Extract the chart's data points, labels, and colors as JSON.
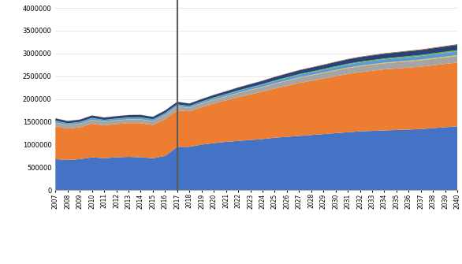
{
  "years": [
    2007,
    2008,
    2009,
    2010,
    2011,
    2012,
    2013,
    2014,
    2015,
    2016,
    2017,
    2018,
    2019,
    2020,
    2021,
    2022,
    2023,
    2024,
    2025,
    2026,
    2027,
    2028,
    2029,
    2030,
    2031,
    2032,
    2033,
    2034,
    2035,
    2036,
    2037,
    2038,
    2039,
    2040
  ],
  "CO": [
    680000,
    660000,
    680000,
    720000,
    700000,
    720000,
    730000,
    720000,
    700000,
    750000,
    950000,
    950000,
    1000000,
    1030000,
    1060000,
    1080000,
    1100000,
    1120000,
    1150000,
    1170000,
    1190000,
    1210000,
    1230000,
    1250000,
    1270000,
    1290000,
    1300000,
    1310000,
    1320000,
    1330000,
    1340000,
    1360000,
    1380000,
    1400000
  ],
  "NOx": [
    720000,
    690000,
    700000,
    740000,
    720000,
    730000,
    740000,
    750000,
    730000,
    810000,
    800000,
    780000,
    820000,
    870000,
    910000,
    960000,
    1000000,
    1040000,
    1080000,
    1120000,
    1160000,
    1190000,
    1220000,
    1250000,
    1280000,
    1300000,
    1320000,
    1340000,
    1350000,
    1360000,
    1370000,
    1380000,
    1390000,
    1400000
  ],
  "SOx": [
    80000,
    75000,
    75000,
    80000,
    78000,
    78000,
    80000,
    82000,
    80000,
    85000,
    85000,
    75000,
    78000,
    82000,
    85000,
    90000,
    95000,
    100000,
    105000,
    110000,
    115000,
    118000,
    120000,
    125000,
    128000,
    130000,
    132000,
    134000,
    136000,
    138000,
    140000,
    142000,
    144000,
    146000
  ],
  "TSP": [
    5000,
    5000,
    5000,
    5000,
    5000,
    5000,
    5000,
    5000,
    5000,
    5000,
    5000,
    5000,
    5500,
    6000,
    6500,
    7000,
    7500,
    8000,
    8500,
    9000,
    9500,
    10000,
    10500,
    11000,
    11500,
    12000,
    12500,
    13000,
    13500,
    14000,
    14500,
    15000,
    15500,
    16000
  ],
  "PM10": [
    35000,
    33000,
    33000,
    35000,
    34000,
    34000,
    35000,
    36000,
    35000,
    37000,
    38000,
    34000,
    36000,
    38000,
    40000,
    43000,
    46000,
    49000,
    52000,
    55000,
    58000,
    60000,
    62000,
    65000,
    67000,
    69000,
    71000,
    73000,
    75000,
    77000,
    79000,
    81000,
    83000,
    85000
  ],
  "PM25": [
    5000,
    5000,
    5000,
    5000,
    5000,
    5000,
    5000,
    5000,
    5000,
    5000,
    5000,
    5000,
    6000,
    7000,
    8000,
    9000,
    10000,
    11000,
    12000,
    13000,
    14000,
    15000,
    16000,
    17000,
    18000,
    19000,
    20000,
    21000,
    22000,
    23000,
    24000,
    25000,
    26000,
    27000
  ],
  "VOC": [
    50000,
    48000,
    48000,
    52000,
    50000,
    50000,
    52000,
    53000,
    52000,
    55000,
    55000,
    50000,
    52000,
    55000,
    58000,
    62000,
    66000,
    70000,
    74000,
    78000,
    82000,
    85000,
    88000,
    92000,
    95000,
    98000,
    100000,
    102000,
    104000,
    106000,
    108000,
    110000,
    112000,
    114000
  ],
  "NH3": [
    3000,
    3000,
    3000,
    3000,
    3000,
    3000,
    3000,
    3000,
    3000,
    3000,
    3000,
    3000,
    3500,
    4000,
    4500,
    5000,
    5500,
    6000,
    6500,
    7000,
    7500,
    8000,
    8500,
    9000,
    9500,
    10000,
    10500,
    11000,
    11500,
    12000,
    12500,
    13000,
    13500,
    14000
  ],
  "colors": {
    "CO": "#4472C4",
    "NOx": "#ED7D31",
    "SOx": "#A5A5A5",
    "TSP": "#FFC000",
    "PM10": "#5B9BD5",
    "PM25": "#70AD47",
    "VOC": "#264478",
    "NH3": "#9E480E"
  },
  "vline_year": 2017,
  "ylim": [
    0,
    4000000
  ],
  "yticks": [
    0,
    500000,
    1000000,
    1500000,
    2000000,
    2500000,
    3000000,
    3500000,
    4000000
  ],
  "ytick_labels": [
    "0",
    "500000",
    "1000000",
    "1500000",
    "2000000",
    "2500000",
    "3000000",
    "3500000",
    "4000000"
  ]
}
